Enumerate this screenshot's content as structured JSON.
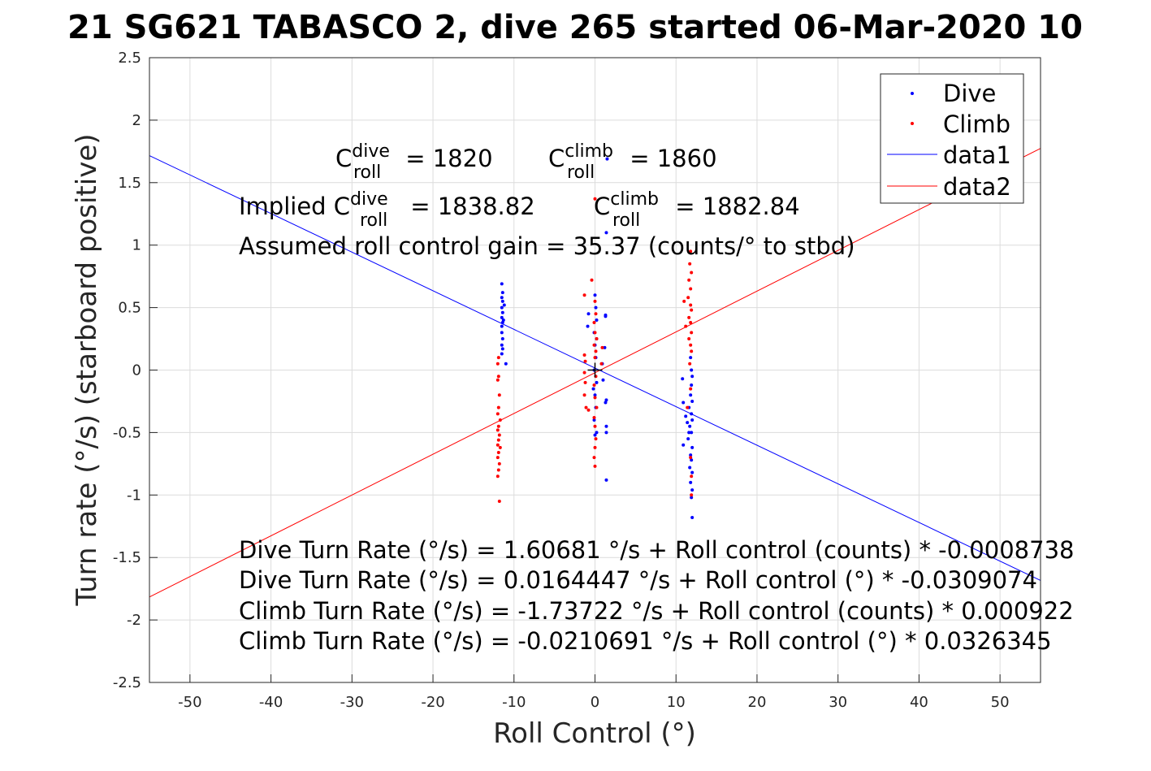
{
  "chart_data": {
    "type": "scatter",
    "title": "21 SG621 TABASCO 2, dive 265 started 06-Mar-2020 10",
    "xlabel": "Roll Control (°)",
    "ylabel": "Turn rate (°/s) (starboard positive)",
    "xlim": [
      -55,
      55
    ],
    "ylim": [
      -2.5,
      2.5
    ],
    "xticks": [
      -50,
      -40,
      -30,
      -20,
      -10,
      0,
      10,
      20,
      30,
      40,
      50
    ],
    "yticks": [
      -2.5,
      -2,
      -1.5,
      -1,
      -0.5,
      0,
      0.5,
      1,
      1.5,
      2,
      2.5
    ],
    "grid": true,
    "legend_position": "top-right",
    "legend": [
      "Dive",
      "Climb",
      "data1",
      "data2"
    ],
    "colors": {
      "dive": "#0000ff",
      "climb": "#ff0000",
      "marker": "#000000"
    },
    "series": [
      {
        "name": "Dive",
        "kind": "points",
        "points": [
          [
            -11.5,
            0.69
          ],
          [
            -11.4,
            0.62
          ],
          [
            -11.5,
            0.58
          ],
          [
            -11.4,
            0.55
          ],
          [
            -11.5,
            0.5
          ],
          [
            -11.2,
            0.52
          ],
          [
            -11.4,
            0.46
          ],
          [
            -11.5,
            0.42
          ],
          [
            -11.4,
            0.38
          ],
          [
            -11.5,
            0.35
          ],
          [
            -11.3,
            0.4
          ],
          [
            -11.5,
            0.3
          ],
          [
            -11.4,
            0.25
          ],
          [
            -11.5,
            0.2
          ],
          [
            -11.4,
            0.17
          ],
          [
            -11.5,
            0.13
          ],
          [
            -11.0,
            0.05
          ],
          [
            -0.8,
            0.45
          ],
          [
            -0.9,
            0.35
          ],
          [
            0.0,
            0.6
          ],
          [
            0.1,
            0.5
          ],
          [
            0.2,
            0.4
          ],
          [
            -0.1,
            0.3
          ],
          [
            0.0,
            0.2
          ],
          [
            0.1,
            0.1
          ],
          [
            -0.1,
            0.0
          ],
          [
            0.2,
            -0.1
          ],
          [
            0.0,
            -0.2
          ],
          [
            0.1,
            -0.3
          ],
          [
            -0.1,
            -0.4
          ],
          [
            0.2,
            -0.5
          ],
          [
            0.0,
            -0.52
          ],
          [
            1.3,
            0.44
          ],
          [
            1.3,
            0.43
          ],
          [
            1.2,
            0.18
          ],
          [
            0.9,
            0.05
          ],
          [
            1.0,
            -0.08
          ],
          [
            1.4,
            -0.24
          ],
          [
            1.3,
            -0.26
          ],
          [
            1.4,
            -0.45
          ],
          [
            1.4,
            -0.5
          ],
          [
            1.4,
            -0.88
          ],
          [
            1.5,
            1.69
          ],
          [
            1.4,
            1.1
          ],
          [
            0.2,
            0.25
          ],
          [
            -0.2,
            -0.15
          ],
          [
            11.8,
            0.1
          ],
          [
            11.9,
            0.0
          ],
          [
            12.0,
            -0.05
          ],
          [
            10.8,
            -0.07
          ],
          [
            11.9,
            -0.12
          ],
          [
            11.8,
            -0.2
          ],
          [
            12.0,
            -0.25
          ],
          [
            10.9,
            -0.26
          ],
          [
            11.6,
            -0.3
          ],
          [
            11.9,
            -0.35
          ],
          [
            11.2,
            -0.37
          ],
          [
            12.0,
            -0.4
          ],
          [
            11.7,
            -0.45
          ],
          [
            11.9,
            -0.5
          ],
          [
            11.5,
            -0.55
          ],
          [
            10.9,
            -0.6
          ],
          [
            12.0,
            -0.62
          ],
          [
            11.8,
            -0.68
          ],
          [
            11.9,
            -0.72
          ],
          [
            11.7,
            -0.78
          ],
          [
            12.0,
            -0.82
          ],
          [
            11.8,
            -0.9
          ],
          [
            12.0,
            -0.96
          ],
          [
            11.9,
            -1.02
          ],
          [
            12.0,
            -1.18
          ],
          [
            11.6,
            -0.5
          ],
          [
            11.4,
            -0.42
          ]
        ]
      },
      {
        "name": "Climb",
        "kind": "points",
        "points": [
          [
            -11.9,
            0.1
          ],
          [
            -12.0,
            0.05
          ],
          [
            -11.9,
            -0.05
          ],
          [
            -12.0,
            -0.08
          ],
          [
            -11.8,
            -0.2
          ],
          [
            -11.9,
            -0.3
          ],
          [
            -12.0,
            -0.35
          ],
          [
            -11.7,
            -0.4
          ],
          [
            -11.9,
            -0.45
          ],
          [
            -12.0,
            -0.48
          ],
          [
            -11.8,
            -0.52
          ],
          [
            -11.9,
            -0.56
          ],
          [
            -12.0,
            -0.6
          ],
          [
            -11.7,
            -0.62
          ],
          [
            -11.9,
            -0.66
          ],
          [
            -12.0,
            -0.7
          ],
          [
            -11.8,
            -0.75
          ],
          [
            -11.9,
            -0.8
          ],
          [
            -12.0,
            -0.85
          ],
          [
            -11.8,
            -1.05
          ],
          [
            -1.3,
            0.6
          ],
          [
            -0.4,
            0.72
          ],
          [
            0.0,
            0.55
          ],
          [
            0.1,
            0.45
          ],
          [
            -0.1,
            0.38
          ],
          [
            0.0,
            0.3
          ],
          [
            0.2,
            0.25
          ],
          [
            -0.1,
            0.2
          ],
          [
            0.1,
            0.15
          ],
          [
            0.0,
            0.1
          ],
          [
            -1.3,
            0.12
          ],
          [
            -1.2,
            0.07
          ],
          [
            -1.3,
            -0.02
          ],
          [
            -1.2,
            -0.1
          ],
          [
            -1.3,
            -0.2
          ],
          [
            -1.1,
            -0.3
          ],
          [
            -0.8,
            -0.32
          ],
          [
            0.1,
            -0.05
          ],
          [
            -0.1,
            -0.12
          ],
          [
            0.0,
            -0.22
          ],
          [
            0.2,
            -0.3
          ],
          [
            -0.1,
            -0.38
          ],
          [
            0.0,
            -0.45
          ],
          [
            0.1,
            -0.55
          ],
          [
            0.0,
            -0.62
          ],
          [
            -0.1,
            -0.7
          ],
          [
            0.0,
            -0.77
          ],
          [
            0.0,
            1.37
          ],
          [
            0.9,
            0.18
          ],
          [
            0.8,
            0.05
          ],
          [
            11.8,
            0.95
          ],
          [
            11.7,
            0.85
          ],
          [
            11.9,
            0.78
          ],
          [
            11.6,
            0.72
          ],
          [
            11.8,
            0.65
          ],
          [
            11.5,
            0.58
          ],
          [
            11.8,
            0.52
          ],
          [
            11.0,
            0.55
          ],
          [
            11.9,
            0.48
          ],
          [
            11.6,
            0.42
          ],
          [
            11.8,
            0.38
          ],
          [
            11.2,
            0.35
          ],
          [
            11.9,
            0.3
          ],
          [
            11.6,
            0.25
          ],
          [
            11.8,
            0.2
          ],
          [
            11.9,
            0.15
          ],
          [
            11.7,
            0.05
          ],
          [
            11.8,
            -0.15
          ],
          [
            11.4,
            -0.3
          ],
          [
            11.8,
            -0.7
          ],
          [
            11.9,
            -0.85
          ],
          [
            11.9,
            -1.0
          ]
        ]
      },
      {
        "name": "data1",
        "kind": "line",
        "intercept": 0.0164447,
        "slope": -0.0309074
      },
      {
        "name": "data2",
        "kind": "line",
        "intercept": -0.0210691,
        "slope": 0.0326345
      },
      {
        "name": "origin",
        "kind": "marker",
        "points": [
          [
            0,
            0
          ]
        ]
      }
    ],
    "annotations": {
      "c_dive": {
        "base": "C",
        "sup": "dive",
        "sub": "roll",
        "rest": " = 1820"
      },
      "c_climb": {
        "base": "C",
        "sup": "climb",
        "sub": "roll",
        "rest": " = 1860"
      },
      "implied_dive": {
        "pre": "Implied C",
        "sup": "dive",
        "sub": "roll",
        "rest": " = 1838.82"
      },
      "implied_climb": {
        "base": "C",
        "sup": "climb",
        "sub": "roll",
        "rest": " = 1882.84"
      },
      "gain": "Assumed roll control gain = 35.37 (counts/° to stbd)",
      "eq1": "Dive Turn Rate (°/s) = 1.60681 °/s + Roll control (counts) * -0.0008738",
      "eq2": "Dive Turn Rate (°/s) = 0.0164447 °/s + Roll control (°) * -0.0309074",
      "eq3": "Climb Turn Rate (°/s) = -1.73722 °/s + Roll control (counts) * 0.000922",
      "eq4": "Climb Turn Rate (°/s) = -0.0210691 °/s + Roll control (°) * 0.0326345"
    }
  }
}
